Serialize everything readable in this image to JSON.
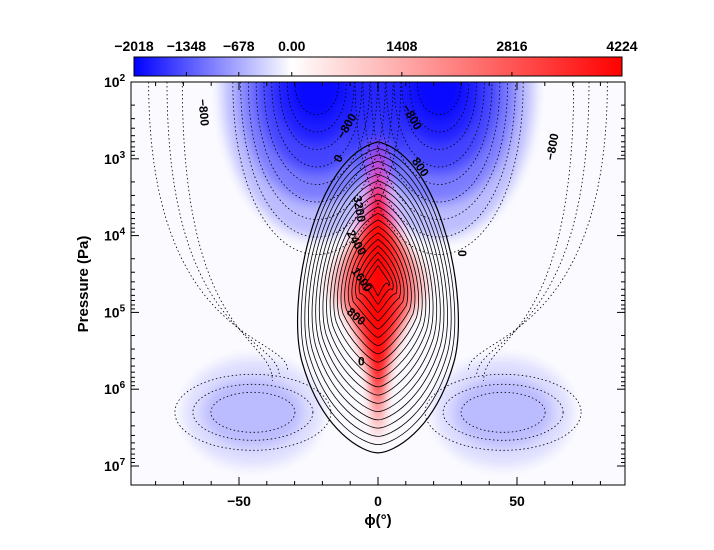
{
  "chart_data": {
    "type": "heatmap",
    "title": "",
    "xlabel": "ϕ(°)",
    "ylabel": "Pressure (Pa)",
    "xlim": [
      -88,
      88
    ],
    "ylim": [
      100,
      15000000
    ],
    "yscale": "log",
    "x_ticks": [
      {
        "value": -50,
        "label": "−50"
      },
      {
        "value": 0,
        "label": "0"
      },
      {
        "value": 50,
        "label": "50"
      }
    ],
    "y_ticks": [
      {
        "value": 100,
        "base": "10",
        "exp": "2"
      },
      {
        "value": 1000,
        "base": "10",
        "exp": "3"
      },
      {
        "value": 10000,
        "base": "10",
        "exp": "4"
      },
      {
        "value": 100000,
        "base": "10",
        "exp": "5"
      },
      {
        "value": 1000000,
        "base": "10",
        "exp": "6"
      },
      {
        "value": 10000000,
        "base": "10",
        "exp": "7"
      }
    ],
    "colorbar": {
      "min": -2018,
      "max": 4224,
      "ticks": [
        {
          "value": -2018,
          "label": "−2018"
        },
        {
          "value": -1348,
          "label": "−1348"
        },
        {
          "value": -678,
          "label": "−678"
        },
        {
          "value": 0,
          "label": "0.00"
        },
        {
          "value": 1408,
          "label": "1408"
        },
        {
          "value": 2816,
          "label": "2816"
        },
        {
          "value": 4224,
          "label": "4224"
        }
      ],
      "colors": {
        "negative": "#0000ff",
        "zero": "#ffffff",
        "positive": "#ff0000"
      }
    },
    "contour_interval": 200,
    "features": {
      "positive_jet": {
        "center_lat": 0,
        "peak_pressure": 40000,
        "peak_value": 4224
      },
      "negative_jets": [
        {
          "center_lat": -22,
          "peak_pressure": 100,
          "peak_value": -2018
        },
        {
          "center_lat": 22,
          "peak_pressure": 100,
          "peak_value": -2018
        }
      ],
      "deep_negative_lobes": [
        {
          "center_lat": -45,
          "peak_pressure": 2000000,
          "peak_value": -650
        },
        {
          "center_lat": 45,
          "peak_pressure": 2000000,
          "peak_value": -650
        }
      ]
    },
    "contour_labels": [
      {
        "text": "−800",
        "lat": -63,
        "pressure": 250,
        "angle": 85
      },
      {
        "text": "−800",
        "lat": -11,
        "pressure": 380,
        "angle": -60
      },
      {
        "text": "0",
        "lat": -14,
        "pressure": 1000,
        "angle": -60
      },
      {
        "text": "−800",
        "lat": 12,
        "pressure": 290,
        "angle": 60
      },
      {
        "text": "800",
        "lat": 15,
        "pressure": 1300,
        "angle": 55
      },
      {
        "text": "−800",
        "lat": 63,
        "pressure": 700,
        "angle": -80
      },
      {
        "text": "3200",
        "lat": -7,
        "pressure": 4500,
        "angle": 80
      },
      {
        "text": "2400",
        "lat": -8,
        "pressure": 12500,
        "angle": 60
      },
      {
        "text": "1600",
        "lat": -6,
        "pressure": 38000,
        "angle": 55
      },
      {
        "text": "800",
        "lat": -8,
        "pressure": 115000,
        "angle": 40
      },
      {
        "text": "0",
        "lat": 30,
        "pressure": 17000,
        "angle": 90
      },
      {
        "text": "0",
        "lat": -6,
        "pressure": 450000,
        "angle": 0
      }
    ]
  }
}
